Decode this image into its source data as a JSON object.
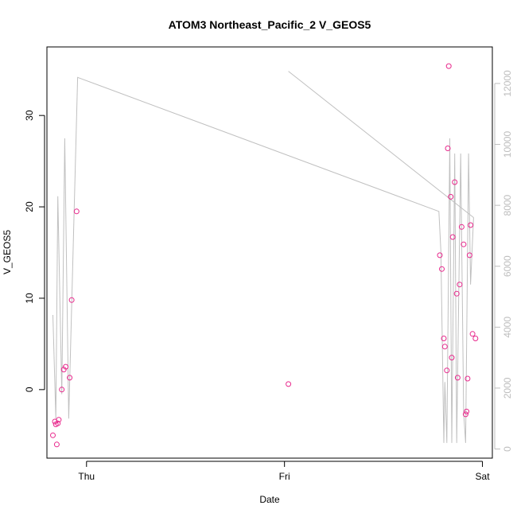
{
  "chart_data": {
    "type": "scatter",
    "title": "ATOM3 Northeast_Pacific_2 V_GEOS5",
    "xlabel": "Date",
    "ylabel": "V_GEOS5",
    "x_ticks": [
      "Thu",
      "Fri",
      "Sat"
    ],
    "xlim": [
      -0.2,
      2.05
    ],
    "ylim": [
      -7.5,
      37.5
    ],
    "y_ticks": [
      0,
      10,
      20,
      30
    ],
    "y2lim": [
      -300,
      13200
    ],
    "y2_ticks": [
      0,
      2000,
      4000,
      6000,
      8000,
      10000,
      12000
    ],
    "grid": false,
    "legend": "none",
    "colors": {
      "points": "#e8288c",
      "altitude_line": "#c0c0c0",
      "right_axis": "#bdbdbd",
      "axis": "#000000"
    },
    "series": [
      {
        "kind": "points",
        "axis": "left",
        "points": [
          [
            -0.17,
            -5.0
          ],
          [
            -0.16,
            -3.5
          ],
          [
            -0.155,
            -3.8
          ],
          [
            -0.15,
            -6.0
          ],
          [
            -0.145,
            -3.7
          ],
          [
            -0.14,
            -3.3
          ],
          [
            -0.125,
            0.0
          ],
          [
            -0.115,
            2.2
          ],
          [
            -0.105,
            2.5
          ],
          [
            -0.085,
            1.3
          ],
          [
            -0.075,
            9.8
          ],
          [
            -0.05,
            19.5
          ],
          [
            1.02,
            0.6
          ],
          [
            1.785,
            14.7
          ],
          [
            1.795,
            13.2
          ],
          [
            1.805,
            5.6
          ],
          [
            1.81,
            4.7
          ],
          [
            1.82,
            2.1
          ],
          [
            1.825,
            26.4
          ],
          [
            1.83,
            35.4
          ],
          [
            1.84,
            21.1
          ],
          [
            1.845,
            3.5
          ],
          [
            1.85,
            16.7
          ],
          [
            1.86,
            22.7
          ],
          [
            1.87,
            10.5
          ],
          [
            1.875,
            1.3
          ],
          [
            1.885,
            11.5
          ],
          [
            1.895,
            17.8
          ],
          [
            1.905,
            15.9
          ],
          [
            1.915,
            -2.7
          ],
          [
            1.92,
            -2.4
          ],
          [
            1.925,
            1.2
          ],
          [
            1.935,
            14.7
          ],
          [
            1.94,
            18.0
          ],
          [
            1.95,
            6.1
          ],
          [
            1.965,
            5.6
          ]
        ]
      },
      {
        "kind": "line",
        "axis": "right",
        "points": [
          [
            -0.17,
            4400
          ],
          [
            -0.155,
            1000
          ],
          [
            -0.145,
            8300
          ],
          [
            -0.125,
            1800
          ],
          [
            -0.11,
            10200
          ],
          [
            -0.09,
            1000
          ],
          [
            -0.045,
            12200
          ],
          [
            1.78,
            7800
          ],
          [
            1.79,
            6500
          ],
          [
            1.805,
            200
          ],
          [
            1.81,
            2200
          ],
          [
            1.82,
            200
          ],
          [
            1.835,
            10200
          ],
          [
            1.845,
            200
          ],
          [
            1.86,
            9700
          ],
          [
            1.87,
            200
          ],
          [
            1.89,
            9700
          ],
          [
            1.905,
            1200
          ],
          [
            1.915,
            200
          ],
          [
            1.93,
            9700
          ],
          [
            1.94,
            5400
          ],
          [
            1.955,
            7600
          ]
        ]
      },
      {
        "kind": "line",
        "axis": "right",
        "points": [
          [
            1.02,
            12400
          ],
          [
            1.955,
            7600
          ]
        ]
      }
    ]
  }
}
